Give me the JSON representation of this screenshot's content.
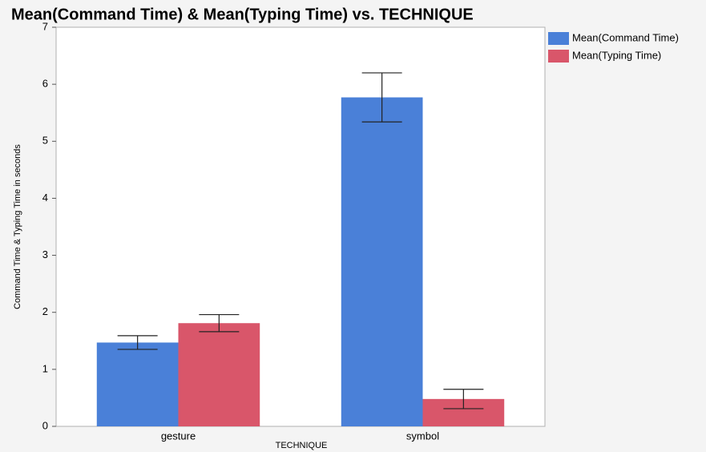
{
  "chart_data": {
    "type": "bar",
    "title": "Mean(Command Time) & Mean(Typing Time) vs. TECHNIQUE",
    "xlabel": "TECHNIQUE",
    "ylabel": "Command Time & Typing Time in seconds",
    "categories": [
      "gesture",
      "symbol"
    ],
    "series": [
      {
        "name": "Mean(Command Time)",
        "color": "#4a80d8",
        "values": [
          1.47,
          5.77
        ],
        "errors": [
          0.12,
          0.43
        ]
      },
      {
        "name": "Mean(Typing Time)",
        "color": "#d9566a",
        "values": [
          1.81,
          0.48
        ],
        "errors": [
          0.15,
          0.17
        ]
      }
    ],
    "ylim": [
      0,
      7
    ],
    "yticks": [
      0,
      1,
      2,
      3,
      4,
      5,
      6,
      7
    ],
    "grid": false,
    "legend": "right"
  }
}
